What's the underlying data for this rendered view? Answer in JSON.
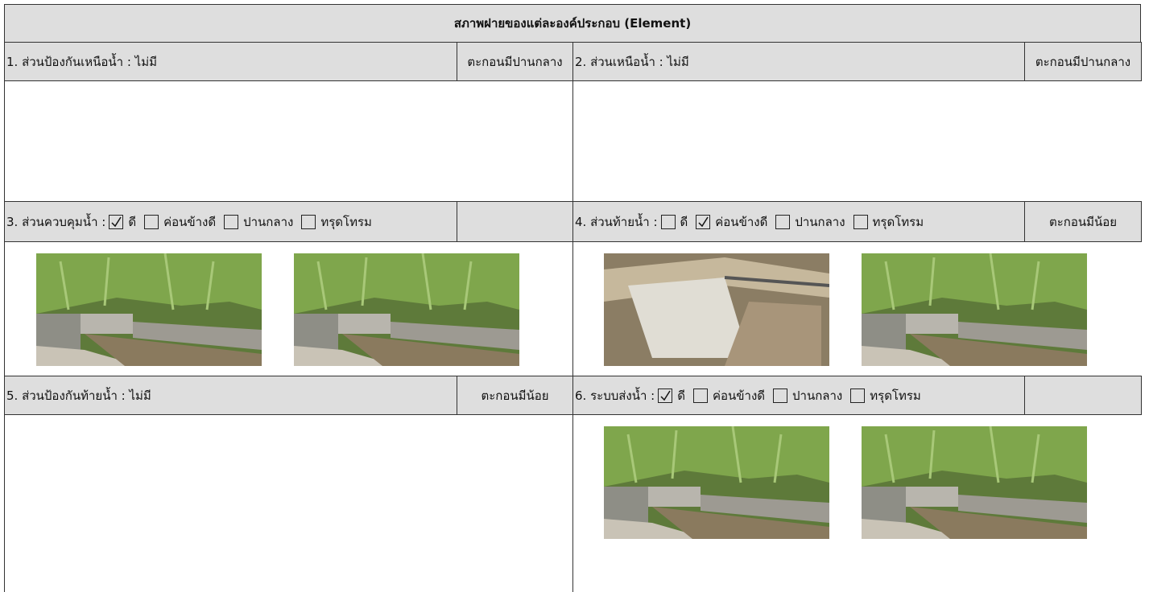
{
  "header": {
    "title": "สภาพฝายของแต่ละองค์ประกอบ (Element)"
  },
  "sections": [
    {
      "label": "1. ส่วนป้องกันเหนือน้ำ : ไม่มี",
      "note": "ตะกอนมีปานกลาง"
    },
    {
      "label": "2. ส่วนเหนือน้ำ : ไม่มี",
      "note": "ตะกอนมีปานกลาง"
    },
    {
      "label": "3. ส่วนควบคุมน้ำ :",
      "options": [
        {
          "label": "ดี",
          "checked": true
        },
        {
          "label": "ค่อนข้างดี",
          "checked": false
        },
        {
          "label": "ปานกลาง",
          "checked": false
        },
        {
          "label": "ทรุดโทรม",
          "checked": false
        }
      ]
    },
    {
      "label": "4. ส่วนท้ายน้ำ :",
      "options": [
        {
          "label": "ดี",
          "checked": false
        },
        {
          "label": "ค่อนข้างดี",
          "checked": true
        },
        {
          "label": "ปานกลาง",
          "checked": false
        },
        {
          "label": "ทรุดโทรม",
          "checked": false
        }
      ],
      "note": "ตะกอนมีน้อย"
    },
    {
      "label": "5. ส่วนป้องกันท้ายน้ำ : ไม่มี",
      "note": "ตะกอนมีน้อย"
    },
    {
      "label": "6. ระบบส่งน้ำ :",
      "options": [
        {
          "label": "ดี",
          "checked": true
        },
        {
          "label": "ค่อนข้างดี",
          "checked": false
        },
        {
          "label": "ปานกลาง",
          "checked": false
        },
        {
          "label": "ทรุดโทรม",
          "checked": false
        }
      ]
    }
  ]
}
